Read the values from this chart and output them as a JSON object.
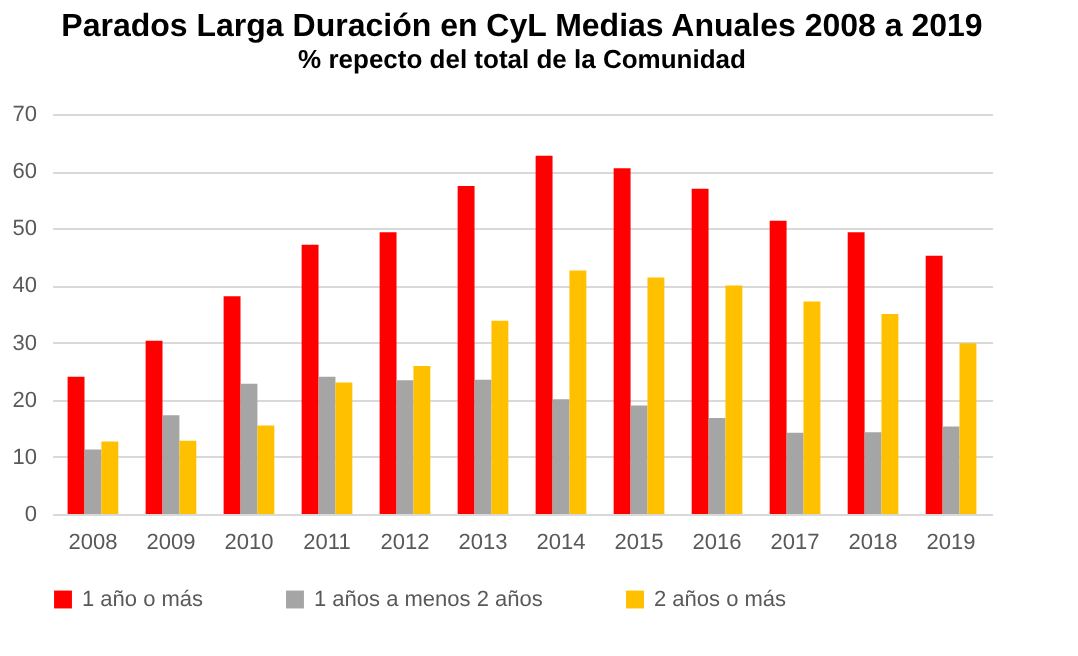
{
  "chart_data": {
    "type": "bar",
    "title": "Parados Larga Duración en CyL Medias Anuales 2008 a 2019",
    "subtitle": "% repecto del total de la Comunidad",
    "categories": [
      "2008",
      "2009",
      "2010",
      "2011",
      "2012",
      "2013",
      "2014",
      "2015",
      "2016",
      "2017",
      "2018",
      "2019"
    ],
    "series": [
      {
        "name": "1 año o más",
        "color": "#ff0000",
        "values": [
          24.0,
          30.3,
          38.1,
          47.1,
          49.3,
          57.4,
          62.7,
          60.5,
          56.9,
          51.3,
          49.3,
          45.2
        ]
      },
      {
        "name": "1 años a menos 2 años",
        "color": "#a5a5a5",
        "values": [
          11.3,
          17.3,
          22.8,
          24.0,
          23.4,
          23.5,
          20.1,
          19.0,
          16.8,
          14.2,
          14.3,
          15.3
        ]
      },
      {
        "name": "2 años o más",
        "color": "#ffc000",
        "values": [
          12.7,
          12.8,
          15.5,
          23.0,
          25.9,
          33.8,
          42.6,
          41.4,
          40.0,
          37.2,
          35.0,
          29.9
        ]
      }
    ],
    "ylim": [
      0,
      70
    ],
    "yticks": [
      0,
      10,
      20,
      30,
      40,
      50,
      60,
      70
    ],
    "grid": "y",
    "legend": "bottom"
  }
}
